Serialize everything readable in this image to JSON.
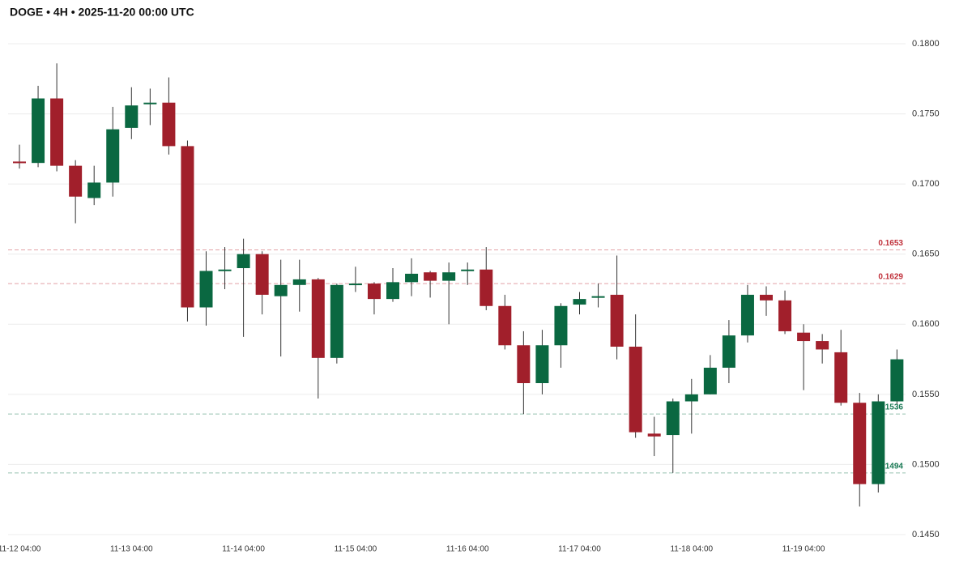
{
  "chart_data": {
    "type": "candlestick",
    "title": "DOGE • 4H • 2025-11-20 00:00 UTC",
    "categories": [
      "11-12 04:00",
      null,
      null,
      null,
      null,
      null,
      "11-13 04:00",
      null,
      null,
      null,
      null,
      null,
      "11-14 04:00",
      null,
      null,
      null,
      null,
      null,
      "11-15 04:00",
      null,
      null,
      null,
      null,
      null,
      "11-16 04:00",
      null,
      null,
      null,
      null,
      null,
      "11-17 04:00",
      null,
      null,
      null,
      null,
      null,
      "11-18 04:00",
      null,
      null,
      null,
      null,
      null,
      "11-19 04:00",
      null,
      null,
      null,
      null,
      null
    ],
    "open": [
      0.1716,
      0.1715,
      0.1761,
      0.1713,
      0.169,
      0.1701,
      0.174,
      0.1757,
      0.1758,
      0.1727,
      0.1612,
      0.1638,
      0.164,
      0.165,
      0.162,
      0.1628,
      0.1632,
      0.1576,
      0.1628,
      0.1629,
      0.1618,
      0.163,
      0.1637,
      0.1631,
      0.1638,
      0.1639,
      0.1613,
      0.1585,
      0.1558,
      0.1585,
      0.1614,
      0.1619,
      0.1621,
      0.1584,
      0.1522,
      0.1521,
      0.1545,
      0.155,
      0.1569,
      0.1592,
      0.1621,
      0.1617,
      0.1594,
      0.1588,
      0.158,
      0.1544,
      0.1486,
      0.1545
    ],
    "high": [
      0.1728,
      0.177,
      0.1786,
      0.1717,
      0.1713,
      0.1755,
      0.1769,
      0.1768,
      0.1776,
      0.1731,
      0.1652,
      0.1655,
      0.1661,
      0.1652,
      0.1646,
      0.1646,
      0.1633,
      0.1629,
      0.1641,
      0.163,
      0.164,
      0.1647,
      0.1638,
      0.1644,
      0.1644,
      0.1655,
      0.1621,
      0.1595,
      0.1596,
      0.1615,
      0.1623,
      0.1629,
      0.1649,
      0.1607,
      0.1534,
      0.1547,
      0.1561,
      0.1578,
      0.1603,
      0.1628,
      0.1627,
      0.1624,
      0.16,
      0.1593,
      0.1596,
      0.1551,
      0.155,
      0.1582
    ],
    "low": [
      0.1711,
      0.1712,
      0.1709,
      0.1672,
      0.1685,
      0.1691,
      0.1732,
      0.1742,
      0.1721,
      0.1602,
      0.1599,
      0.1625,
      0.1591,
      0.1607,
      0.1577,
      0.1609,
      0.1547,
      0.1572,
      0.1623,
      0.1607,
      0.1616,
      0.162,
      0.1619,
      0.16,
      0.1628,
      0.161,
      0.1582,
      0.1536,
      0.155,
      0.1569,
      0.1607,
      0.1612,
      0.1575,
      0.1519,
      0.1506,
      0.1494,
      0.1522,
      0.155,
      0.1558,
      0.1587,
      0.1606,
      0.1593,
      0.1553,
      0.1572,
      0.1542,
      0.147,
      0.148,
      0.1543
    ],
    "close": [
      0.1715,
      0.1761,
      0.1713,
      0.1691,
      0.1701,
      0.1739,
      0.1756,
      0.1758,
      0.1727,
      0.1612,
      0.1638,
      0.1639,
      0.165,
      0.1621,
      0.1628,
      0.1632,
      0.1576,
      0.1628,
      0.1629,
      0.1618,
      0.163,
      0.1636,
      0.1631,
      0.1637,
      0.1639,
      0.1613,
      0.1585,
      0.1558,
      0.1585,
      0.1613,
      0.1618,
      0.162,
      0.1584,
      0.1523,
      0.152,
      0.1545,
      0.155,
      0.1569,
      0.1592,
      0.1621,
      0.1617,
      0.1595,
      0.1588,
      0.1582,
      0.1544,
      0.1486,
      0.1545,
      0.1575
    ],
    "up_color": "#0a6841",
    "down_color": "#a11f2b",
    "levels": [
      {
        "value": 0.1653,
        "color": "#c0303a"
      },
      {
        "value": 0.1629,
        "color": "#c0303a"
      },
      {
        "value": 0.1536,
        "color": "#1a7a55"
      },
      {
        "value": 0.1494,
        "color": "#1a7a55"
      }
    ],
    "ylim": [
      0.145,
      0.18
    ],
    "yticks": [
      {
        "value": 0.145,
        "label": "0.1450"
      },
      {
        "value": 0.15,
        "label": "0.1500"
      },
      {
        "value": 0.155,
        "label": "0.1550"
      },
      {
        "value": 0.16,
        "label": "0.1600"
      },
      {
        "value": 0.165,
        "label": "0.1650"
      },
      {
        "value": 0.17,
        "label": "0.1700"
      },
      {
        "value": 0.175,
        "label": "0.1750"
      },
      {
        "value": 0.18,
        "label": "0.1800"
      }
    ],
    "grid": true
  }
}
